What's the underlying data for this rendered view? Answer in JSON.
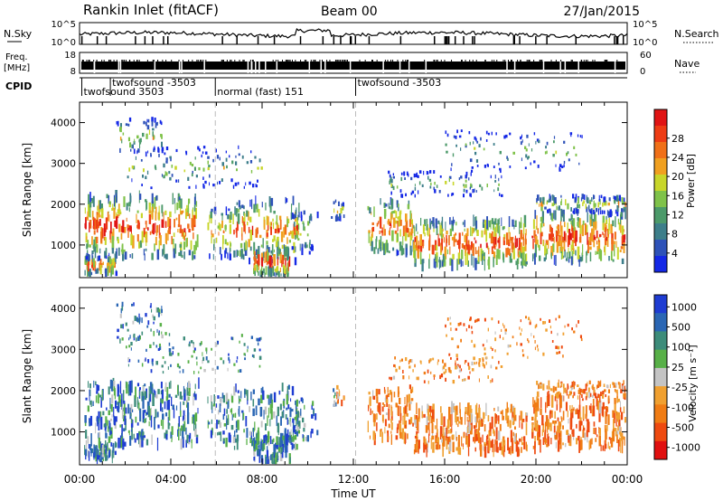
{
  "header": {
    "station": "Rankin Inlet (fitACF)",
    "beam": "Beam 00",
    "date": "27/Jan/2015"
  },
  "top_panels": {
    "nsky_label": "N.Sky",
    "nsky_ticks": [
      "10^5",
      "10^0"
    ],
    "nsearch_label": "N.Search",
    "nsearch_ticks": [
      "10^5",
      "10^0"
    ],
    "freq_label": "Freq.",
    "freq_unit": "[MHz]",
    "freq_ticks": [
      "18",
      "8"
    ],
    "nave_label": "Nave",
    "nave_ticks": [
      "60",
      "0"
    ],
    "cpid_label": "CPID",
    "cpid_segments": [
      {
        "name": "twofsound 3503",
        "start_h": 0.1,
        "row": 2
      },
      {
        "name": "twofsound -3503",
        "start_h": 1.35,
        "row": 1
      },
      {
        "name": "normal (fast) 151",
        "start_h": 5.95,
        "row": 2
      },
      {
        "name": "twofsound -3503",
        "start_h": 12.1,
        "row": 1
      }
    ],
    "cpid_change_h": [
      0.1,
      1.35,
      5.95,
      12.1
    ]
  },
  "chart_data": [
    {
      "type": "heatmap",
      "name": "power",
      "ylabel": "Slant Range [km]",
      "xlim": [
        0,
        24
      ],
      "ylim": [
        200,
        4500
      ],
      "yticks": [
        1000,
        2000,
        3000,
        4000
      ],
      "colorbar_label": "Power [dB]",
      "colorbar_ticks": [
        "4",
        "8",
        "12",
        "16",
        "20",
        "24",
        "28"
      ],
      "colors": [
        "#1428e6",
        "#2e52b8",
        "#3d7e8a",
        "#4c9a6a",
        "#7fc24a",
        "#c8d62a",
        "#f0a020",
        "#f07018",
        "#ee3c14",
        "#e01414"
      ]
    },
    {
      "type": "heatmap",
      "name": "velocity",
      "ylabel": "Slant Range [km]",
      "xlabel": "Time UT",
      "xlim": [
        0,
        24
      ],
      "xticks": [
        "00:00",
        "04:00",
        "08:00",
        "12:00",
        "16:00",
        "20:00",
        "00:00"
      ],
      "ylim": [
        200,
        4500
      ],
      "yticks": [
        1000,
        2000,
        3000,
        4000
      ],
      "colorbar_label": "Velocity [m s⁻¹]",
      "colorbar_ticks": [
        "1000",
        "500",
        "100",
        "25",
        "-25",
        "-100",
        "-500",
        "-1000"
      ],
      "colors": [
        "#1e3cd2",
        "#2a66b4",
        "#3d8c7a",
        "#58b048",
        "#c4c4c4",
        "#f0a030",
        "#f07c14",
        "#ee4a10",
        "#e01010"
      ]
    }
  ]
}
